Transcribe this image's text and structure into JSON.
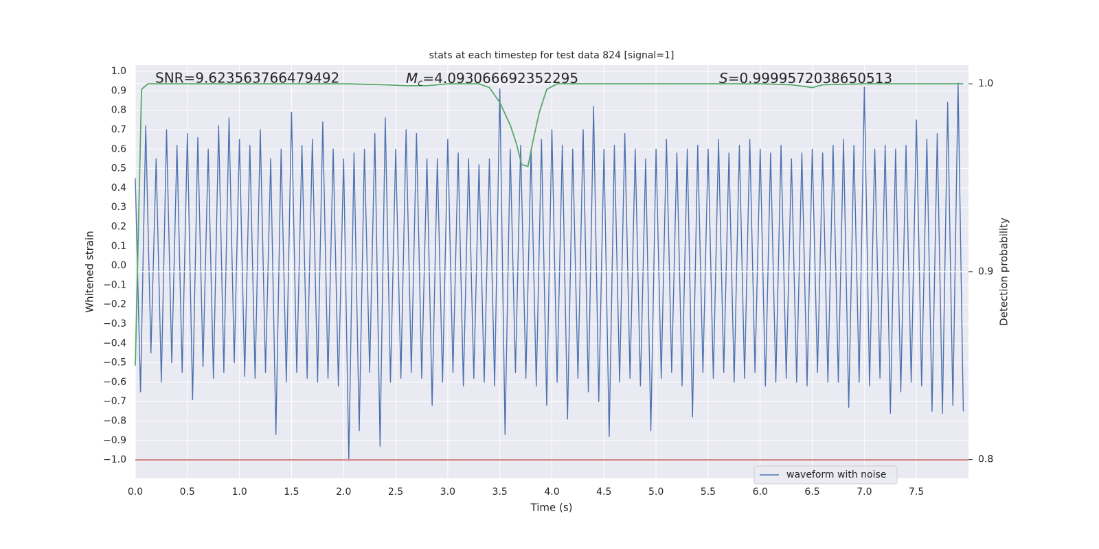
{
  "chart_data": {
    "type": "line",
    "title": "stats at each timestep for test data 824 [signal=1]",
    "xlabel": "Time (s)",
    "ylabel": "Whitened strain",
    "y2label": "Detection probability",
    "annotations": [
      {
        "text": "SNR=9.623563766479492"
      },
      {
        "symbol": "M",
        "subscript": "c",
        "text": "=4.093066692352295"
      },
      {
        "symbol": "S",
        "text": "=0.9999572038650513"
      }
    ],
    "xlim": [
      0,
      8.0
    ],
    "ylim": [
      -1.095,
      1.032
    ],
    "y2lim": [
      0.79,
      1.0099
    ],
    "xticks": [
      {
        "value": 0,
        "label": "0.0"
      },
      0.5,
      {
        "value": 1,
        "label": "1.0"
      },
      1.5,
      {
        "value": 2,
        "label": "2.0"
      },
      2.5,
      {
        "value": 3,
        "label": "3.0"
      },
      3.5,
      {
        "value": 4,
        "label": "4.0"
      },
      4.5,
      {
        "value": 5,
        "label": "5.0"
      },
      5.5,
      {
        "value": 6,
        "label": "6.0"
      },
      6.5,
      {
        "value": 7,
        "label": "7.0"
      },
      7.5
    ],
    "yticks": [
      {
        "value": -1.0,
        "label": "−1.0"
      },
      {
        "value": -0.9,
        "label": "−0.9"
      },
      {
        "value": -0.8,
        "label": "−0.8"
      },
      {
        "value": -0.7,
        "label": "−0.7"
      },
      {
        "value": -0.6,
        "label": "−0.6"
      },
      {
        "value": -0.5,
        "label": "−0.5"
      },
      {
        "value": -0.4,
        "label": "−0.4"
      },
      {
        "value": -0.3,
        "label": "−0.3"
      },
      {
        "value": -0.2,
        "label": "−0.2"
      },
      {
        "value": -0.1,
        "label": "−0.1"
      },
      {
        "value": 0,
        "label": "0.0"
      },
      0.1,
      0.2,
      0.3,
      0.4,
      0.5,
      0.6,
      0.7,
      0.8,
      0.9,
      {
        "value": 1.0,
        "label": "1.0"
      }
    ],
    "y2ticks": [
      0.8,
      0.9,
      {
        "value": 1.0,
        "label": "1.0"
      }
    ],
    "grid": true,
    "legend": "lower right",
    "reference_lines": [
      {
        "value": -1.0,
        "color": "#c44e52"
      }
    ],
    "series": [
      {
        "name": "waveform with noise",
        "color": "#4c72b0",
        "x": [
          0,
          0.05,
          0.1,
          0.15,
          0.2,
          0.25,
          0.3,
          0.35,
          0.4,
          0.45,
          0.5,
          0.55,
          0.6,
          0.65,
          0.7,
          0.75,
          0.8,
          0.85,
          0.9,
          0.95,
          1.0,
          1.05,
          1.1,
          1.15,
          1.2,
          1.25,
          1.3,
          1.35,
          1.4,
          1.45,
          1.5,
          1.55,
          1.6,
          1.65,
          1.7,
          1.75,
          1.8,
          1.85,
          1.9,
          1.95,
          2.0,
          2.05,
          2.1,
          2.15,
          2.2,
          2.25,
          2.3,
          2.35,
          2.4,
          2.45,
          2.5,
          2.55,
          2.6,
          2.65,
          2.7,
          2.75,
          2.8,
          2.85,
          2.9,
          2.95,
          3.0,
          3.05,
          3.1,
          3.15,
          3.2,
          3.25,
          3.3,
          3.35,
          3.4,
          3.45,
          3.5,
          3.55,
          3.6,
          3.65,
          3.7,
          3.75,
          3.8,
          3.85,
          3.9,
          3.95,
          4.0,
          4.05,
          4.1,
          4.15,
          4.2,
          4.25,
          4.3,
          4.35,
          4.4,
          4.45,
          4.5,
          4.55,
          4.6,
          4.65,
          4.7,
          4.75,
          4.8,
          4.85,
          4.9,
          4.95,
          5.0,
          5.05,
          5.1,
          5.15,
          5.2,
          5.25,
          5.3,
          5.35,
          5.4,
          5.45,
          5.5,
          5.55,
          5.6,
          5.65,
          5.7,
          5.75,
          5.8,
          5.85,
          5.9,
          5.95,
          6.0,
          6.05,
          6.1,
          6.15,
          6.2,
          6.25,
          6.3,
          6.35,
          6.4,
          6.45,
          6.5,
          6.55,
          6.6,
          6.65,
          6.7,
          6.75,
          6.8,
          6.85,
          6.9,
          6.95,
          7.0,
          7.05,
          7.1,
          7.15,
          7.2,
          7.25,
          7.3,
          7.35,
          7.4,
          7.45,
          7.5,
          7.55,
          7.6,
          7.65,
          7.7,
          7.75,
          7.8,
          7.85,
          7.9,
          7.95
        ],
        "values": [
          0.45,
          -0.65,
          0.72,
          -0.45,
          0.55,
          -0.6,
          0.7,
          -0.5,
          0.62,
          -0.55,
          0.68,
          -0.69,
          0.66,
          -0.52,
          0.6,
          -0.58,
          0.72,
          -0.55,
          0.76,
          -0.5,
          0.65,
          -0.57,
          0.62,
          -0.58,
          0.7,
          -0.55,
          0.55,
          -0.87,
          0.6,
          -0.6,
          0.79,
          -0.55,
          0.62,
          -0.58,
          0.65,
          -0.6,
          0.74,
          -0.58,
          0.6,
          -0.62,
          0.55,
          -1.0,
          0.58,
          -0.85,
          0.6,
          -0.55,
          0.68,
          -0.93,
          0.76,
          -0.6,
          0.6,
          -0.58,
          0.7,
          -0.55,
          0.68,
          -0.58,
          0.55,
          -0.72,
          0.55,
          -0.6,
          0.65,
          -0.55,
          0.58,
          -0.62,
          0.55,
          -0.58,
          0.52,
          -0.6,
          0.55,
          -0.62,
          0.91,
          -0.87,
          0.6,
          -0.55,
          0.62,
          -0.58,
          0.6,
          -0.62,
          0.65,
          -0.72,
          0.7,
          -0.6,
          0.62,
          -0.79,
          0.6,
          -0.58,
          0.7,
          -0.65,
          0.82,
          -0.7,
          0.6,
          -0.88,
          0.62,
          -0.6,
          0.68,
          -0.58,
          0.6,
          -0.62,
          0.55,
          -0.85,
          0.6,
          -0.58,
          0.65,
          -0.55,
          0.58,
          -0.62,
          0.6,
          -0.78,
          0.62,
          -0.55,
          0.6,
          -0.58,
          0.65,
          -0.55,
          0.58,
          -0.6,
          0.62,
          -0.58,
          0.65,
          -0.55,
          0.6,
          -0.62,
          0.58,
          -0.6,
          0.62,
          -0.58,
          0.55,
          -0.6,
          0.58,
          -0.62,
          0.6,
          -0.55,
          0.58,
          -0.6,
          0.62,
          -0.6,
          0.65,
          -0.73,
          0.62,
          -0.6,
          0.92,
          -0.62,
          0.6,
          -0.58,
          0.62,
          -0.76,
          0.6,
          -0.65,
          0.62,
          -0.6,
          0.75,
          -0.62,
          0.65,
          -0.75,
          0.68,
          -0.76,
          0.84,
          -0.72,
          0.94,
          -0.75
        ]
      },
      {
        "color": "#55a868",
        "axis": "y2",
        "x": [
          0,
          0.06,
          0.12,
          0.5,
          1.0,
          2.0,
          2.4,
          2.6,
          2.8,
          3.0,
          3.3,
          3.4,
          3.5,
          3.6,
          3.66,
          3.71,
          3.77,
          3.82,
          3.88,
          3.95,
          4.05,
          5.0,
          6.0,
          6.3,
          6.5,
          6.6,
          7.0,
          7.95
        ],
        "values": [
          0.85,
          0.997,
          1.0,
          1.0,
          1.0,
          1.0,
          0.9995,
          0.999,
          0.999,
          1.0,
          1.0,
          0.998,
          0.99,
          0.978,
          0.968,
          0.957,
          0.956,
          0.97,
          0.985,
          0.997,
          1.0,
          1.0,
          1.0,
          0.9995,
          0.998,
          0.9995,
          1.0,
          1.0
        ]
      }
    ]
  }
}
